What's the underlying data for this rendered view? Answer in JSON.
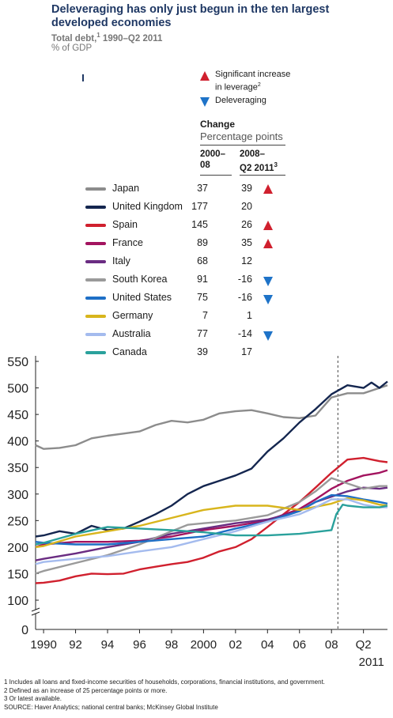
{
  "header": {
    "title": "Deleveraging has only just begun in the ten largest developed economies",
    "subtitle_main": "Total debt,",
    "subtitle_sup": "1",
    "subtitle_rest": " 1990–Q2 2011",
    "unit": "% of GDP"
  },
  "legend": {
    "increase_label_line1": "Significant increase",
    "increase_label_line2": "in leverage",
    "increase_sup": "2",
    "decrease_label": "Deleveraging",
    "increase_color": "#d0202e",
    "decrease_color": "#1e73c8"
  },
  "table": {
    "change_title": "Change",
    "change_subtitle": "Percentage points",
    "col1_line1": "2000–",
    "col1_line2": "08",
    "col2_line1": "2008–",
    "col2_line2": "Q2 2011",
    "col2_sup": "3"
  },
  "countries": [
    {
      "name": "Japan",
      "change_2000_08": "37",
      "change_2008_q2_2011": "39",
      "flag": "up",
      "color": "#8c8c8c"
    },
    {
      "name": "United Kingdom",
      "change_2000_08": "177",
      "change_2008_q2_2011": "20",
      "flag": "",
      "color": "#14264f"
    },
    {
      "name": "Spain",
      "change_2000_08": "145",
      "change_2008_q2_2011": "26",
      "flag": "up",
      "color": "#d0202e"
    },
    {
      "name": "France",
      "change_2000_08": "89",
      "change_2008_q2_2011": "35",
      "flag": "up",
      "color": "#a3145f"
    },
    {
      "name": "Italy",
      "change_2000_08": "68",
      "change_2008_q2_2011": "12",
      "flag": "",
      "color": "#6a2c82"
    },
    {
      "name": "South Korea",
      "change_2000_08": "91",
      "change_2008_q2_2011": "-16",
      "flag": "down",
      "color": "#9a9a9a"
    },
    {
      "name": "United States",
      "change_2000_08": "75",
      "change_2008_q2_2011": "-16",
      "flag": "down",
      "color": "#1e6fc6"
    },
    {
      "name": "Germany",
      "change_2000_08": "7",
      "change_2008_q2_2011": "1",
      "flag": "",
      "color": "#d8b51c"
    },
    {
      "name": "Australia",
      "change_2000_08": "77",
      "change_2008_q2_2011": "-14",
      "flag": "down",
      "color": "#a4bbee"
    },
    {
      "name": "Canada",
      "change_2000_08": "39",
      "change_2008_q2_2011": "17",
      "flag": "",
      "color": "#2aa19c"
    }
  ],
  "chart_data": {
    "type": "line",
    "title": "Deleveraging has only just begun in the ten largest developed economies",
    "ylabel": "% of GDP",
    "xlim": [
      1989.5,
      2011.5
    ],
    "ylim": [
      0,
      550
    ],
    "y_axis_break": true,
    "y_ticks": [
      0,
      100,
      150,
      200,
      250,
      300,
      350,
      400,
      450,
      500,
      550
    ],
    "x_ticks": [
      {
        "x": 1990,
        "label": "1990"
      },
      {
        "x": 1992,
        "label": "92"
      },
      {
        "x": 1994,
        "label": "94"
      },
      {
        "x": 1996,
        "label": "96"
      },
      {
        "x": 1998,
        "label": "98"
      },
      {
        "x": 2000,
        "label": "2000"
      },
      {
        "x": 2002,
        "label": "02"
      },
      {
        "x": 2004,
        "label": "04"
      },
      {
        "x": 2006,
        "label": "06"
      },
      {
        "x": 2008,
        "label": "08"
      },
      {
        "x": 2010,
        "label": "Q2"
      }
    ],
    "x_label_extra": "2011",
    "reference_line_x": 2008.4,
    "grid": false,
    "series": [
      {
        "name": "Japan",
        "color": "#8c8c8c",
        "points": [
          [
            1989.5,
            392
          ],
          [
            1990,
            385
          ],
          [
            1991,
            387
          ],
          [
            1992,
            392
          ],
          [
            1993,
            405
          ],
          [
            1994,
            410
          ],
          [
            1995,
            414
          ],
          [
            1996,
            418
          ],
          [
            1997,
            430
          ],
          [
            1998,
            438
          ],
          [
            1999,
            435
          ],
          [
            2000,
            440
          ],
          [
            2001,
            452
          ],
          [
            2002,
            456
          ],
          [
            2003,
            458
          ],
          [
            2004,
            452
          ],
          [
            2005,
            445
          ],
          [
            2006,
            443
          ],
          [
            2007,
            448
          ],
          [
            2008,
            482
          ],
          [
            2009,
            490
          ],
          [
            2010,
            490
          ],
          [
            2011,
            500
          ],
          [
            2011.5,
            505
          ]
        ]
      },
      {
        "name": "United Kingdom",
        "color": "#14264f",
        "points": [
          [
            1989.5,
            220
          ],
          [
            1990,
            222
          ],
          [
            1991,
            230
          ],
          [
            1992,
            225
          ],
          [
            1993,
            240
          ],
          [
            1994,
            232
          ],
          [
            1995,
            235
          ],
          [
            1996,
            248
          ],
          [
            1997,
            262
          ],
          [
            1998,
            278
          ],
          [
            1999,
            300
          ],
          [
            2000,
            315
          ],
          [
            2001,
            325
          ],
          [
            2002,
            335
          ],
          [
            2003,
            348
          ],
          [
            2004,
            380
          ],
          [
            2005,
            405
          ],
          [
            2006,
            435
          ],
          [
            2007,
            460
          ],
          [
            2008,
            488
          ],
          [
            2009,
            505
          ],
          [
            2010,
            500
          ],
          [
            2010.5,
            510
          ],
          [
            2011,
            500
          ],
          [
            2011.5,
            512
          ]
        ]
      },
      {
        "name": "Spain",
        "color": "#d0202e",
        "points": [
          [
            1989.5,
            132
          ],
          [
            1990,
            133
          ],
          [
            1991,
            137
          ],
          [
            1992,
            145
          ],
          [
            1993,
            150
          ],
          [
            1994,
            149
          ],
          [
            1995,
            150
          ],
          [
            1996,
            158
          ],
          [
            1997,
            163
          ],
          [
            1998,
            168
          ],
          [
            1999,
            172
          ],
          [
            2000,
            180
          ],
          [
            2001,
            192
          ],
          [
            2002,
            200
          ],
          [
            2003,
            215
          ],
          [
            2004,
            238
          ],
          [
            2005,
            262
          ],
          [
            2006,
            285
          ],
          [
            2007,
            312
          ],
          [
            2008,
            340
          ],
          [
            2009,
            365
          ],
          [
            2010,
            368
          ],
          [
            2011,
            362
          ],
          [
            2011.5,
            360
          ]
        ]
      },
      {
        "name": "France",
        "color": "#a3145f",
        "points": [
          [
            1989.5,
            200
          ],
          [
            1990,
            205
          ],
          [
            1992,
            210
          ],
          [
            1994,
            210
          ],
          [
            1996,
            212
          ],
          [
            1998,
            220
          ],
          [
            2000,
            232
          ],
          [
            2002,
            240
          ],
          [
            2004,
            250
          ],
          [
            2006,
            272
          ],
          [
            2007,
            290
          ],
          [
            2008,
            310
          ],
          [
            2009,
            325
          ],
          [
            2010,
            335
          ],
          [
            2011,
            340
          ],
          [
            2011.5,
            345
          ]
        ]
      },
      {
        "name": "Italy",
        "color": "#6a2c82",
        "points": [
          [
            1989.5,
            175
          ],
          [
            1990,
            178
          ],
          [
            1992,
            188
          ],
          [
            1994,
            200
          ],
          [
            1996,
            210
          ],
          [
            1998,
            225
          ],
          [
            2000,
            235
          ],
          [
            2002,
            245
          ],
          [
            2004,
            252
          ],
          [
            2006,
            268
          ],
          [
            2007,
            285
          ],
          [
            2008,
            295
          ],
          [
            2009,
            305
          ],
          [
            2010,
            312
          ],
          [
            2011,
            310
          ],
          [
            2011.5,
            312
          ]
        ]
      },
      {
        "name": "South Korea",
        "color": "#9a9a9a",
        "points": [
          [
            1989.5,
            150
          ],
          [
            1990,
            155
          ],
          [
            1992,
            170
          ],
          [
            1994,
            185
          ],
          [
            1996,
            205
          ],
          [
            1998,
            230
          ],
          [
            1999,
            242
          ],
          [
            2000,
            245
          ],
          [
            2002,
            250
          ],
          [
            2004,
            260
          ],
          [
            2006,
            285
          ],
          [
            2007,
            305
          ],
          [
            2008,
            330
          ],
          [
            2009,
            320
          ],
          [
            2010,
            310
          ],
          [
            2011,
            315
          ],
          [
            2011.5,
            315
          ]
        ]
      },
      {
        "name": "United States",
        "color": "#1e6fc6",
        "points": [
          [
            1989.5,
            210
          ],
          [
            1990,
            208
          ],
          [
            1992,
            205
          ],
          [
            1994,
            205
          ],
          [
            1996,
            210
          ],
          [
            1998,
            215
          ],
          [
            2000,
            220
          ],
          [
            2002,
            235
          ],
          [
            2004,
            248
          ],
          [
            2006,
            268
          ],
          [
            2007,
            285
          ],
          [
            2008,
            298
          ],
          [
            2009,
            296
          ],
          [
            2010,
            290
          ],
          [
            2011,
            285
          ],
          [
            2011.5,
            282
          ]
        ]
      },
      {
        "name": "Germany",
        "color": "#d8b51c",
        "points": [
          [
            1989.5,
            200
          ],
          [
            1990,
            202
          ],
          [
            1992,
            220
          ],
          [
            1994,
            230
          ],
          [
            1996,
            240
          ],
          [
            1998,
            255
          ],
          [
            2000,
            270
          ],
          [
            2002,
            278
          ],
          [
            2004,
            278
          ],
          [
            2006,
            270
          ],
          [
            2008,
            282
          ],
          [
            2009,
            292
          ],
          [
            2010,
            288
          ],
          [
            2011,
            280
          ],
          [
            2011.5,
            278
          ]
        ]
      },
      {
        "name": "Australia",
        "color": "#a4bbee",
        "points": [
          [
            1989.5,
            168
          ],
          [
            1990,
            172
          ],
          [
            1992,
            178
          ],
          [
            1994,
            183
          ],
          [
            1996,
            192
          ],
          [
            1998,
            200
          ],
          [
            2000,
            215
          ],
          [
            2002,
            230
          ],
          [
            2004,
            248
          ],
          [
            2006,
            262
          ],
          [
            2007,
            275
          ],
          [
            2008,
            290
          ],
          [
            2009,
            290
          ],
          [
            2010,
            280
          ],
          [
            2011,
            275
          ],
          [
            2011.5,
            275
          ]
        ]
      },
      {
        "name": "Canada",
        "color": "#2aa19c",
        "points": [
          [
            1989.5,
            205
          ],
          [
            1990,
            208
          ],
          [
            1992,
            225
          ],
          [
            1994,
            238
          ],
          [
            1996,
            235
          ],
          [
            1998,
            232
          ],
          [
            2000,
            228
          ],
          [
            2002,
            222
          ],
          [
            2004,
            222
          ],
          [
            2006,
            225
          ],
          [
            2008,
            232
          ],
          [
            2008.3,
            262
          ],
          [
            2008.7,
            280
          ],
          [
            2009,
            278
          ],
          [
            2010,
            275
          ],
          [
            2011,
            275
          ],
          [
            2011.5,
            278
          ]
        ]
      }
    ]
  },
  "footnotes": {
    "note1": "1  Includes all loans and fixed-income securities of households, corporations, financial institutions, and government.",
    "note2": "2  Defined as an increase of 25 percentage points or more.",
    "note3": "3  Or latest available.",
    "source": "SOURCE: Haver Analytics; national central banks; McKinsey Global Institute"
  }
}
